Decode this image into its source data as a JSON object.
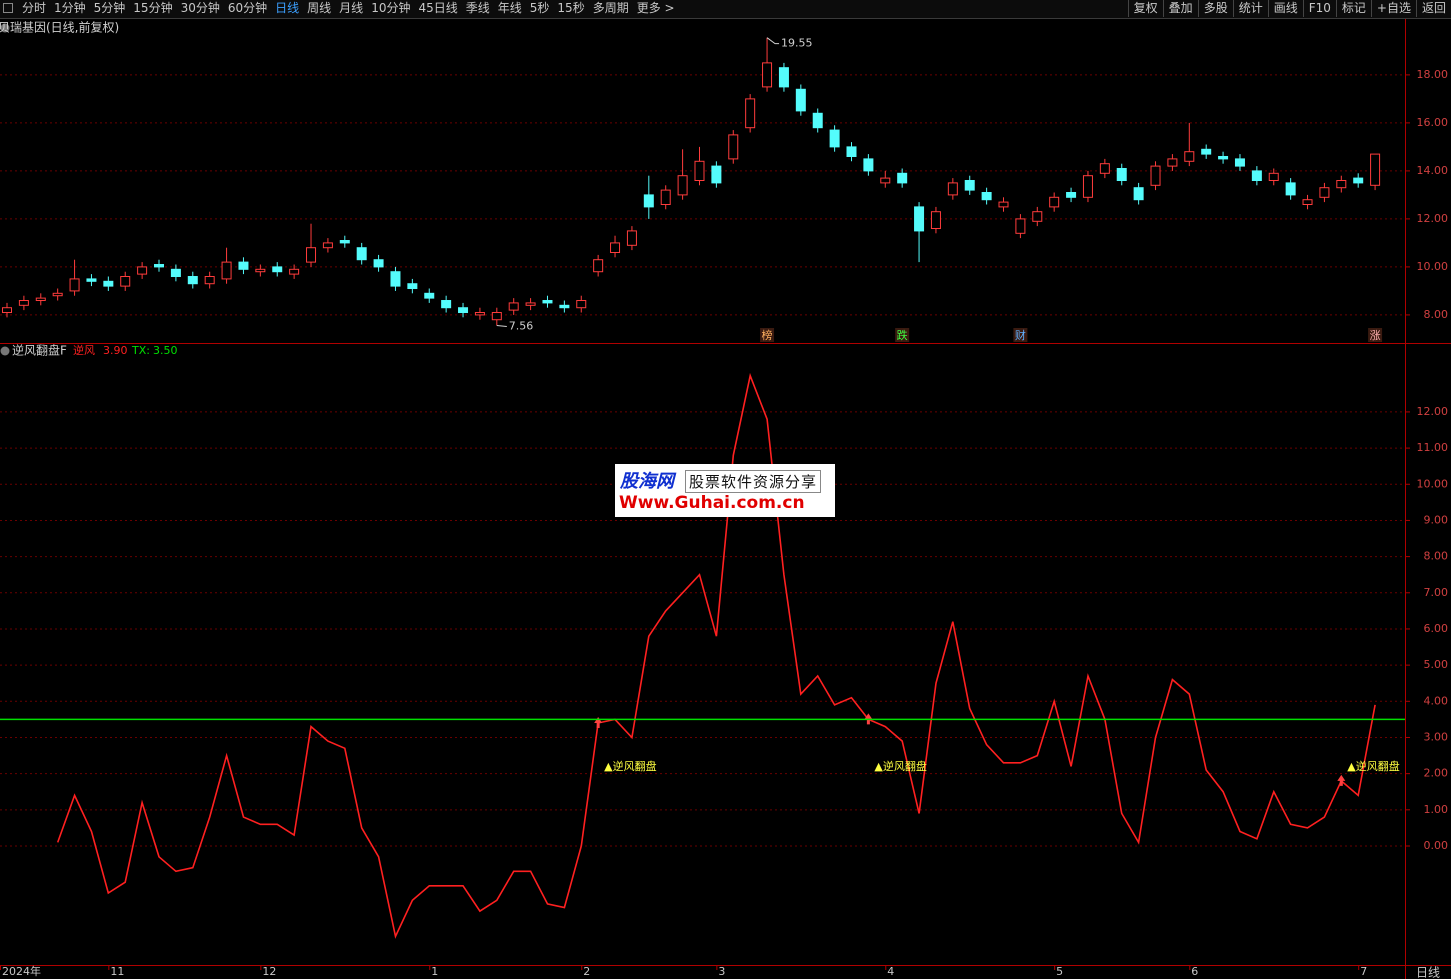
{
  "toolbar": {
    "left": [
      "分时",
      "1分钟",
      "5分钟",
      "15分钟",
      "30分钟",
      "60分钟",
      "日线",
      "周线",
      "月线",
      "10分钟",
      "45日线",
      "季线",
      "年线",
      "5秒",
      "15秒",
      "多周期",
      "更多 >"
    ],
    "active": 6,
    "right": [
      "复权",
      "叠加",
      "多股",
      "统计",
      "画线",
      "F10",
      "标记",
      "+自选",
      "返回"
    ]
  },
  "watermark": {
    "logo": "股海网",
    "slogan": "股票软件资源分享",
    "url": "Www.Guhai.com.cn"
  },
  "footer_period": "日线",
  "chart_data": [
    {
      "type": "candlestick",
      "title": "贝瑞基因(日线,前复权)",
      "open": [
        8.1,
        8.4,
        8.6,
        8.8,
        9.0,
        9.5,
        9.4,
        9.2,
        9.7,
        10.1,
        9.9,
        9.6,
        9.3,
        9.5,
        10.2,
        9.8,
        10.0,
        9.7,
        10.2,
        10.8,
        11.1,
        10.8,
        10.3,
        9.8,
        9.3,
        8.9,
        8.6,
        8.3,
        8.0,
        7.8,
        8.2,
        8.4,
        8.6,
        8.4,
        8.3,
        9.8,
        10.6,
        10.9,
        13.0,
        12.6,
        13.0,
        13.6,
        14.2,
        14.5,
        15.8,
        17.5,
        18.3,
        17.4,
        16.4,
        15.7,
        15.0,
        14.5,
        13.5,
        13.9,
        12.5,
        11.6,
        13.0,
        13.6,
        13.1,
        12.5,
        11.4,
        11.9,
        12.5,
        13.1,
        12.9,
        13.9,
        14.1,
        13.3,
        13.4,
        14.2,
        14.4,
        14.9,
        14.6,
        14.5,
        14.0,
        13.6,
        13.5,
        12.6,
        12.9,
        13.3,
        13.7,
        13.4
      ],
      "high": [
        8.5,
        8.8,
        8.9,
        9.1,
        10.3,
        9.7,
        9.6,
        9.8,
        10.2,
        10.3,
        10.1,
        9.8,
        9.8,
        10.8,
        10.4,
        10.1,
        10.2,
        10.1,
        11.8,
        11.2,
        11.3,
        11.0,
        10.5,
        10.0,
        9.5,
        9.1,
        8.8,
        8.5,
        8.3,
        8.3,
        8.7,
        8.7,
        8.8,
        8.6,
        8.8,
        10.5,
        11.3,
        11.7,
        13.8,
        13.4,
        14.9,
        15.0,
        14.4,
        15.7,
        17.2,
        19.55,
        18.5,
        17.6,
        16.6,
        15.9,
        15.2,
        14.7,
        14.0,
        14.1,
        12.7,
        12.5,
        13.7,
        13.8,
        13.3,
        12.9,
        12.2,
        12.5,
        13.1,
        13.3,
        14.0,
        14.5,
        14.3,
        13.5,
        14.4,
        14.7,
        16.0,
        15.1,
        14.8,
        14.7,
        14.2,
        14.1,
        13.7,
        13.0,
        13.5,
        13.8,
        13.9,
        14.7
      ],
      "low": [
        7.9,
        8.2,
        8.4,
        8.6,
        8.8,
        9.2,
        9.0,
        9.0,
        9.5,
        9.8,
        9.4,
        9.1,
        9.1,
        9.3,
        9.7,
        9.6,
        9.6,
        9.5,
        10.0,
        10.6,
        10.8,
        10.1,
        9.8,
        9.0,
        8.9,
        8.5,
        8.1,
        7.9,
        7.8,
        7.56,
        8.0,
        8.2,
        8.3,
        8.1,
        8.1,
        9.6,
        10.4,
        10.7,
        12.0,
        12.4,
        12.8,
        13.4,
        13.3,
        14.3,
        15.6,
        17.3,
        17.3,
        16.3,
        15.6,
        14.8,
        14.4,
        13.8,
        13.3,
        13.3,
        10.2,
        11.4,
        12.8,
        13.0,
        12.6,
        12.3,
        11.2,
        11.7,
        12.3,
        12.7,
        12.7,
        13.7,
        13.4,
        12.6,
        13.2,
        14.0,
        14.2,
        14.5,
        14.3,
        14.0,
        13.4,
        13.4,
        12.8,
        12.4,
        12.7,
        13.1,
        13.3,
        13.2
      ],
      "close": [
        8.3,
        8.6,
        8.7,
        8.9,
        9.5,
        9.4,
        9.2,
        9.6,
        10.0,
        10.0,
        9.6,
        9.3,
        9.6,
        10.2,
        9.9,
        9.9,
        9.8,
        9.9,
        10.8,
        11.0,
        11.0,
        10.3,
        10.0,
        9.2,
        9.1,
        8.7,
        8.3,
        8.1,
        8.1,
        8.1,
        8.5,
        8.5,
        8.5,
        8.3,
        8.6,
        10.3,
        11.0,
        11.5,
        12.5,
        13.2,
        13.8,
        14.4,
        13.5,
        15.5,
        17.0,
        18.5,
        17.5,
        16.5,
        15.8,
        15.0,
        14.6,
        14.0,
        13.7,
        13.5,
        11.5,
        12.3,
        13.5,
        13.2,
        12.8,
        12.7,
        12.0,
        12.3,
        12.9,
        12.9,
        13.8,
        14.3,
        13.6,
        12.8,
        14.2,
        14.5,
        14.8,
        14.7,
        14.5,
        14.2,
        13.6,
        13.9,
        13.0,
        12.8,
        13.3,
        13.6,
        13.5,
        14.7
      ],
      "up_color": "#ff3c3c",
      "down_color": "#54fcfc",
      "ylim": [
        6.83,
        19.62
      ],
      "yticks": [
        {
          "value": 8,
          "label": "8.00"
        },
        {
          "value": 10,
          "label": "10.00"
        },
        {
          "value": 12,
          "label": "12.00"
        },
        {
          "value": 14,
          "label": "14.00"
        },
        {
          "value": 16,
          "label": "16.00"
        },
        {
          "value": 18,
          "label": "18.00"
        }
      ],
      "grid": true,
      "max_label": 19.55,
      "min_label": 7.56,
      "events": [
        null,
        null,
        null,
        null,
        null,
        null,
        null,
        null,
        null,
        null,
        null,
        null,
        null,
        null,
        null,
        null,
        null,
        null,
        null,
        null,
        null,
        null,
        null,
        null,
        null,
        null,
        null,
        null,
        null,
        null,
        null,
        null,
        null,
        null,
        null,
        null,
        null,
        null,
        null,
        null,
        null,
        null,
        null,
        null,
        null,
        {
          "text": "榜",
          "color": "#ffb060"
        },
        null,
        null,
        null,
        null,
        null,
        null,
        null,
        {
          "text": "跌",
          "color": "#40ff40"
        },
        null,
        null,
        null,
        null,
        null,
        null,
        {
          "text": "财",
          "color": "#60b0ff"
        },
        null,
        null,
        null,
        null,
        null,
        null,
        null,
        null,
        null,
        null,
        null,
        null,
        null,
        null,
        null,
        null,
        null,
        null,
        null,
        null,
        {
          "text": "涨",
          "color": "#ffb0b0"
        }
      ]
    },
    {
      "type": "line",
      "title": "逆风翻盘F",
      "categories": [
        "2024年",
        null,
        null,
        null,
        null,
        null,
        "11",
        null,
        null,
        null,
        null,
        null,
        null,
        null,
        null,
        "12",
        null,
        null,
        null,
        null,
        null,
        null,
        null,
        null,
        null,
        "1",
        null,
        null,
        null,
        null,
        null,
        null,
        null,
        null,
        "2",
        null,
        null,
        null,
        null,
        null,
        null,
        null,
        "3",
        null,
        null,
        null,
        null,
        null,
        null,
        null,
        null,
        null,
        "4",
        null,
        null,
        null,
        null,
        null,
        null,
        null,
        null,
        null,
        "5",
        null,
        null,
        null,
        null,
        null,
        null,
        null,
        "6",
        null,
        null,
        null,
        null,
        null,
        null,
        null,
        null,
        null,
        "7",
        null
      ],
      "series": [
        {
          "name": "逆风",
          "color": "#ff2020",
          "values": [
            null,
            null,
            null,
            0.1,
            1.4,
            0.4,
            -1.3,
            -1.0,
            1.2,
            -0.3,
            -0.7,
            -0.6,
            0.8,
            2.5,
            0.8,
            0.6,
            0.6,
            0.3,
            3.3,
            2.9,
            2.7,
            0.5,
            -0.3,
            -2.5,
            -1.5,
            -1.1,
            -1.1,
            -1.1,
            -1.8,
            -1.5,
            -0.7,
            -0.7,
            -1.6,
            -1.7,
            0.0,
            3.4,
            3.5,
            3.0,
            5.8,
            6.5,
            7.0,
            7.5,
            5.8,
            10.8,
            13.0,
            11.8,
            7.5,
            4.2,
            4.7,
            3.9,
            4.1,
            3.5,
            3.3,
            2.9,
            0.9,
            4.5,
            6.2,
            3.8,
            2.8,
            2.3,
            2.3,
            2.5,
            4.0,
            2.2,
            4.7,
            3.5,
            0.9,
            0.1,
            3.0,
            4.6,
            4.2,
            2.1,
            1.5,
            0.4,
            0.2,
            1.5,
            0.6,
            0.5,
            0.8,
            1.8,
            1.4,
            3.9
          ],
          "last": {
            "value": 3.9,
            "label": "3.90"
          },
          "signals": [
            null,
            null,
            null,
            null,
            null,
            null,
            null,
            null,
            null,
            null,
            null,
            null,
            null,
            null,
            null,
            null,
            null,
            null,
            null,
            null,
            null,
            null,
            null,
            null,
            null,
            null,
            null,
            null,
            null,
            null,
            null,
            null,
            null,
            null,
            null,
            "▲逆风翻盘",
            null,
            null,
            null,
            null,
            null,
            null,
            null,
            null,
            null,
            null,
            null,
            null,
            null,
            null,
            null,
            "▲逆风翻盘",
            null,
            null,
            null,
            null,
            null,
            null,
            null,
            null,
            null,
            null,
            null,
            null,
            null,
            null,
            null,
            null,
            null,
            null,
            null,
            null,
            null,
            null,
            null,
            null,
            null,
            null,
            null,
            "▲逆风翻盘"
          ]
        },
        {
          "name": "TX:",
          "color": "#00e000",
          "level": {
            "value": 3.5,
            "label": "3.50"
          }
        }
      ],
      "ylim": [
        -3.29,
        13.85
      ],
      "yticks": [
        {
          "value": 0,
          "label": "0.00"
        },
        {
          "value": 1,
          "label": "1.00"
        },
        {
          "value": 2,
          "label": "2.00"
        },
        {
          "value": 3,
          "label": "3.00"
        },
        {
          "value": 4,
          "label": "4.00"
        },
        {
          "value": 5,
          "label": "5.00"
        },
        {
          "value": 6,
          "label": "6.00"
        },
        {
          "value": 7,
          "label": "7.00"
        },
        {
          "value": 8,
          "label": "8.00"
        },
        {
          "value": 9,
          "label": "9.00"
        },
        {
          "value": 10,
          "label": "10.00"
        },
        {
          "value": 11,
          "label": "11.00"
        },
        {
          "value": 12,
          "label": "12.00"
        }
      ],
      "grid": true
    }
  ]
}
